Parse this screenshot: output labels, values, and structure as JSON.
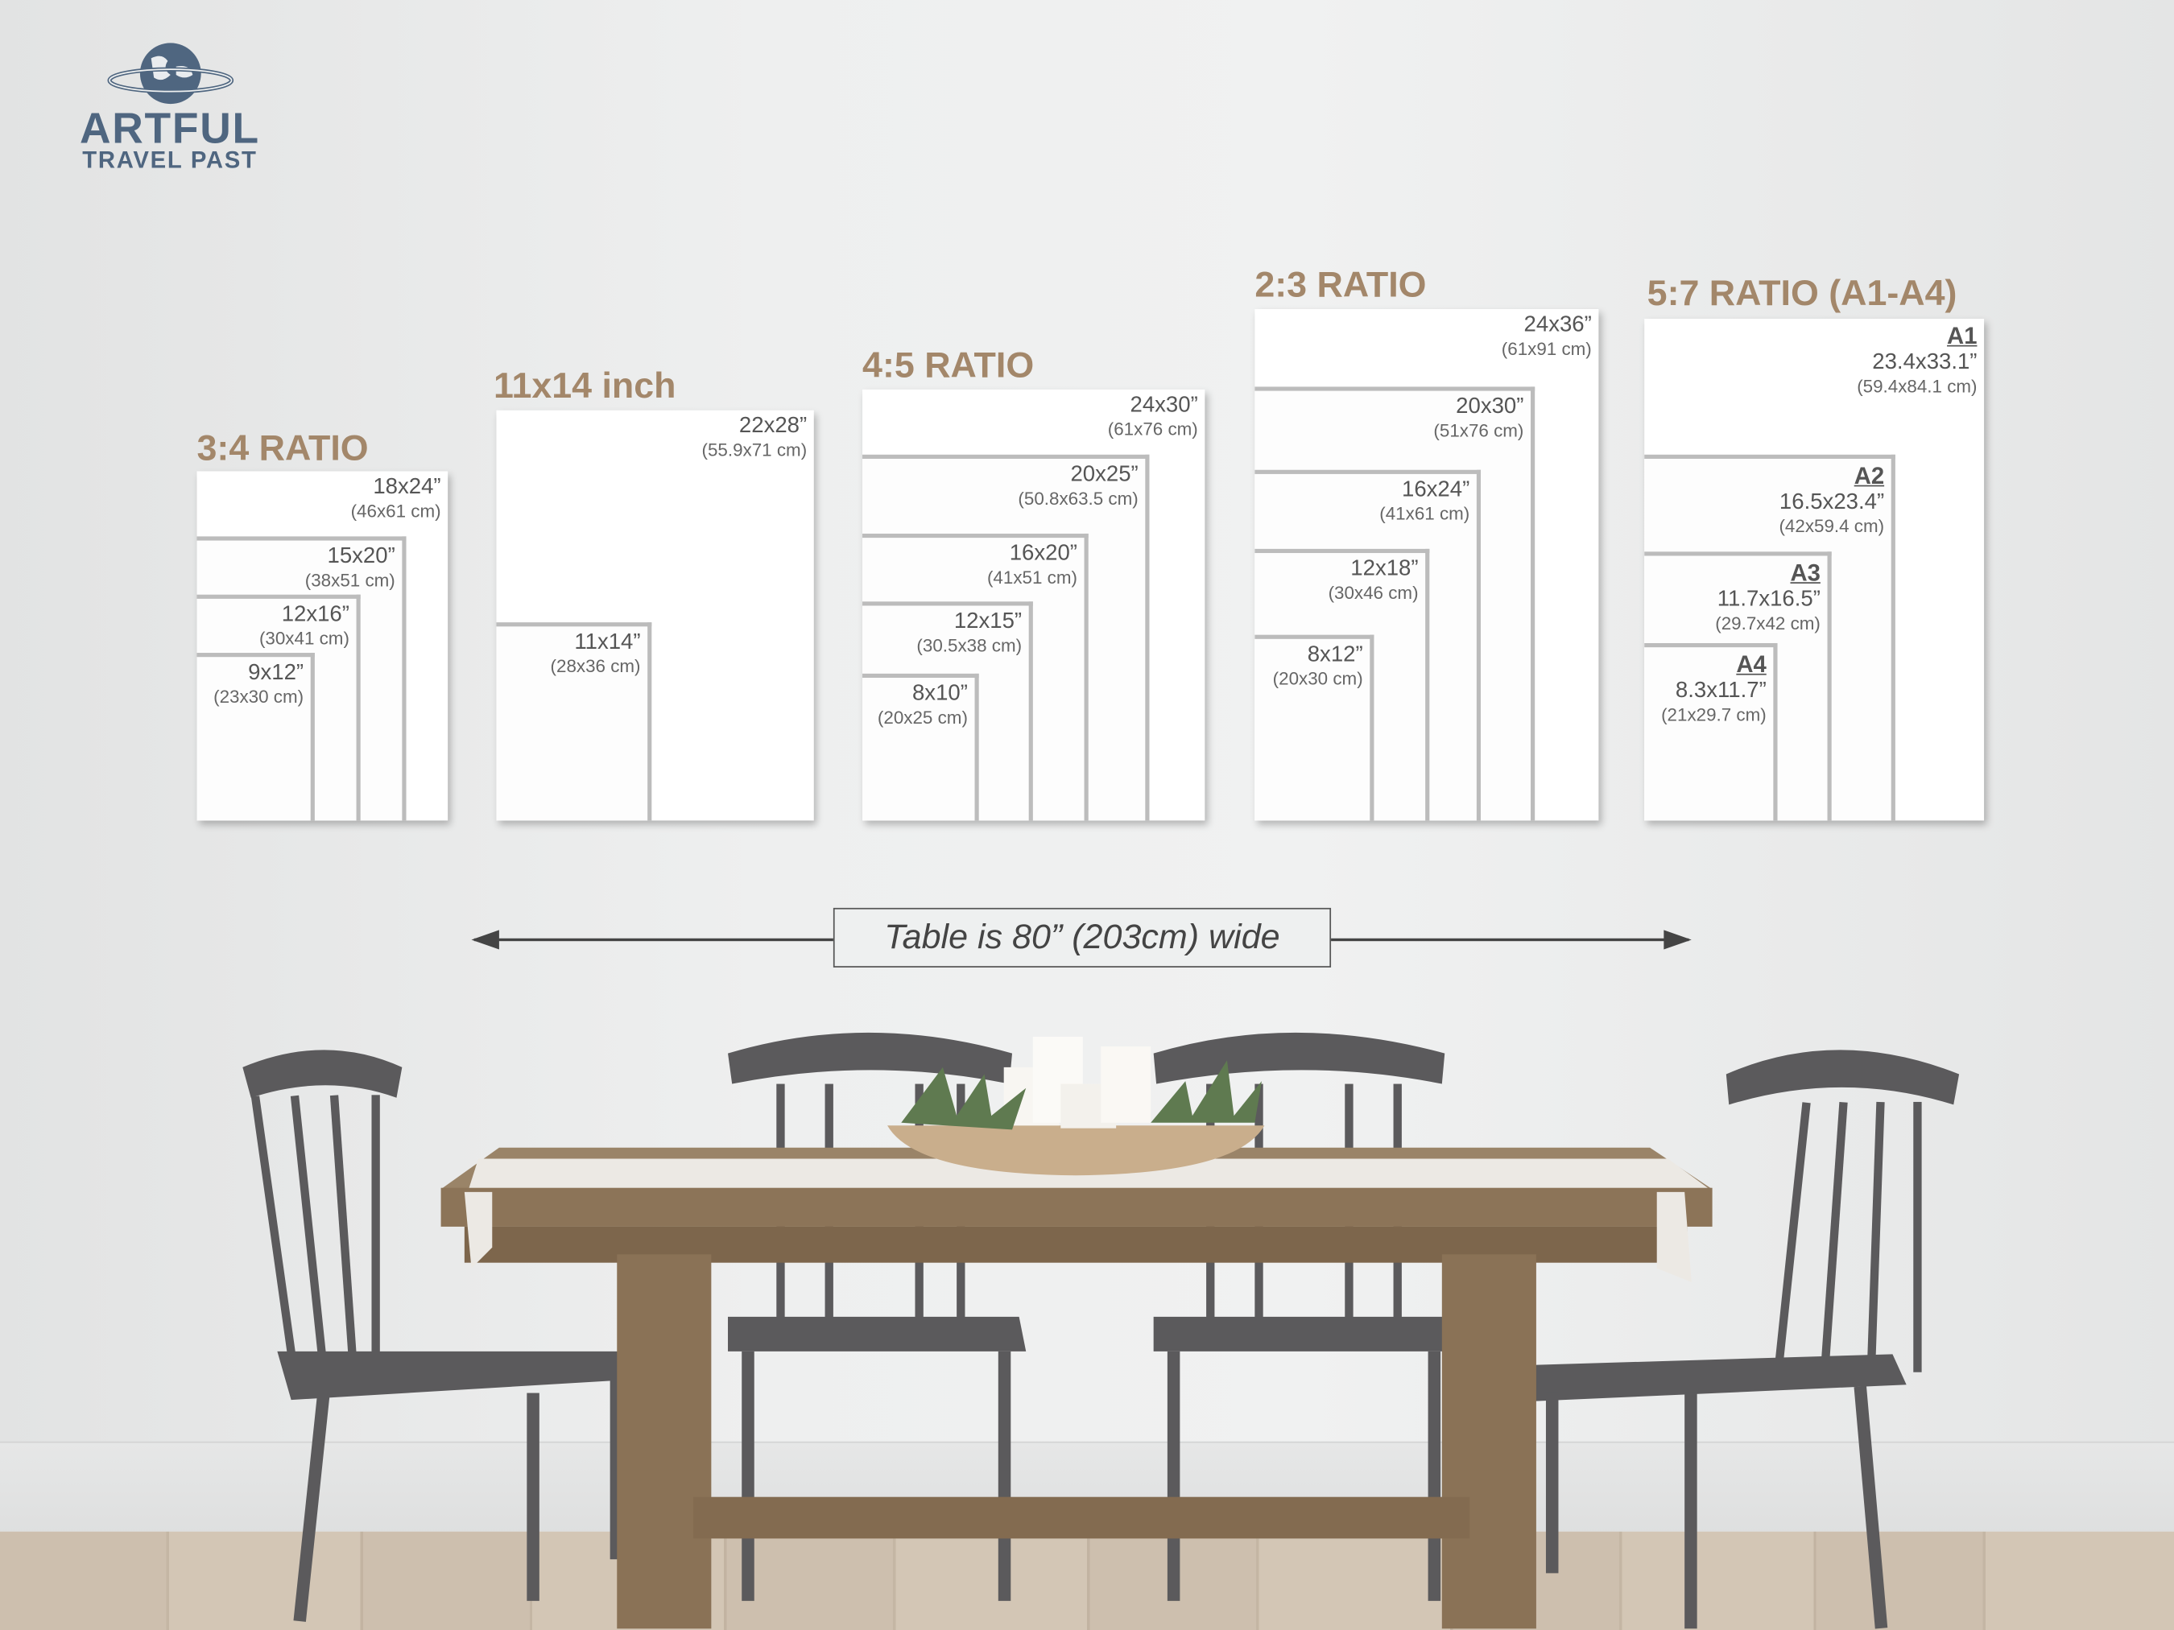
{
  "brand": {
    "name_line1": "ARTFUL",
    "name_line2": "TRAVEL PAST",
    "logo_color": "#4f6680",
    "icon": "globe-with-orbit-icon"
  },
  "groups": [
    {
      "title": "3:4 RATIO",
      "sizes": [
        {
          "inch": "18x24”",
          "cm": "(46x61 cm)"
        },
        {
          "inch": "15x20”",
          "cm": "(38x51 cm)"
        },
        {
          "inch": "12x16”",
          "cm": "(30x41 cm)"
        },
        {
          "inch": "9x12”",
          "cm": "(23x30 cm)"
        }
      ]
    },
    {
      "title": "11x14 inch",
      "sizes": [
        {
          "inch": "22x28”",
          "cm": "(55.9x71 cm)"
        },
        {
          "inch": "11x14”",
          "cm": "(28x36 cm)"
        }
      ]
    },
    {
      "title": "4:5 RATIO",
      "sizes": [
        {
          "inch": "24x30”",
          "cm": "(61x76 cm)"
        },
        {
          "inch": "20x25”",
          "cm": "(50.8x63.5 cm)"
        },
        {
          "inch": "16x20”",
          "cm": "(41x51 cm)"
        },
        {
          "inch": "12x15”",
          "cm": "(30.5x38 cm)"
        },
        {
          "inch": "8x10”",
          "cm": "(20x25 cm)"
        }
      ]
    },
    {
      "title": "2:3 RATIO",
      "sizes": [
        {
          "inch": "24x36”",
          "cm": "(61x91 cm)"
        },
        {
          "inch": "20x30”",
          "cm": "(51x76 cm)"
        },
        {
          "inch": "16x24”",
          "cm": "(41x61 cm)"
        },
        {
          "inch": "12x18”",
          "cm": "(30x46 cm)"
        },
        {
          "inch": "8x12”",
          "cm": "(20x30 cm)"
        }
      ]
    },
    {
      "title": "5:7 RATIO (A1-A4)",
      "sizes": [
        {
          "code": "A1",
          "inch": "23.4x33.1”",
          "cm": "(59.4x84.1 cm)"
        },
        {
          "code": "A2",
          "inch": "16.5x23.4”",
          "cm": "(42x59.4 cm)"
        },
        {
          "code": "A3",
          "inch": "11.7x16.5”",
          "cm": "(29.7x42 cm)"
        },
        {
          "code": "A4",
          "inch": "8.3x11.7”",
          "cm": "(21x29.7 cm)"
        }
      ]
    }
  ],
  "table_width_label": "Table is 80” (203cm) wide",
  "colors": {
    "title": "#a3876a",
    "label": "#555555",
    "frame_border": "#bcbcbc",
    "wood": "#8c7458",
    "chair": "#5b5a5c"
  }
}
